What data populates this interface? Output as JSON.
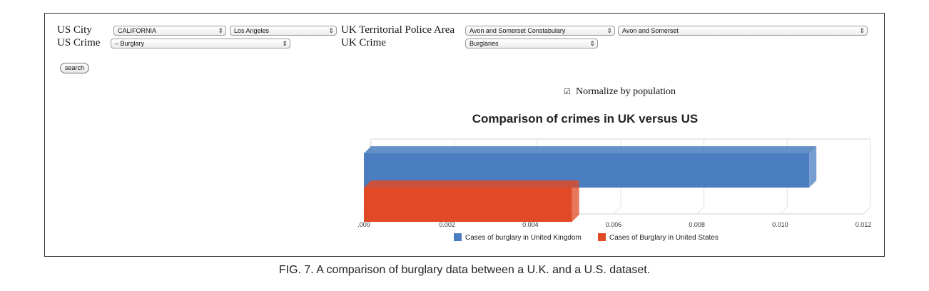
{
  "form": {
    "us_city_label": "US City",
    "us_state_value": "CALIFORNIA",
    "us_city_value": "Los Angeles",
    "us_crime_label": "US Crime",
    "us_crime_value": "– Burglary",
    "uk_area_label": "UK Territorial Police Area",
    "uk_force_value": "Avon and Somerset Constabulary",
    "uk_area_value": "Avon and Somerset",
    "uk_crime_label": "UK Crime",
    "uk_crime_value": "Burglaries",
    "search_label": "search",
    "normalize_label": "Normalize by population",
    "normalize_checked": true,
    "dropdown_arrow": "⇕"
  },
  "chart_data": {
    "type": "bar",
    "orientation": "horizontal",
    "title": "Comparison of crimes in UK versus US",
    "xlim": [
      0,
      0.012
    ],
    "ticks": [
      ".000",
      "0.002",
      "0.004",
      "0.006",
      "0.008",
      "0.010",
      "0.012"
    ],
    "tick_values": [
      0,
      0.002,
      0.004,
      0.006,
      0.008,
      0.01,
      0.012
    ],
    "grid": true,
    "legend_position": "bottom",
    "series": [
      {
        "name": "Cases of burglary in United Kingdom",
        "value": 0.0107,
        "color": "#4a7ec0"
      },
      {
        "name": "Cases of Burglary in United States",
        "value": 0.005,
        "color": "#e04a25"
      }
    ]
  },
  "caption": "FIG. 7.   A comparison of burglary data between a U.K. and a U.S. dataset."
}
